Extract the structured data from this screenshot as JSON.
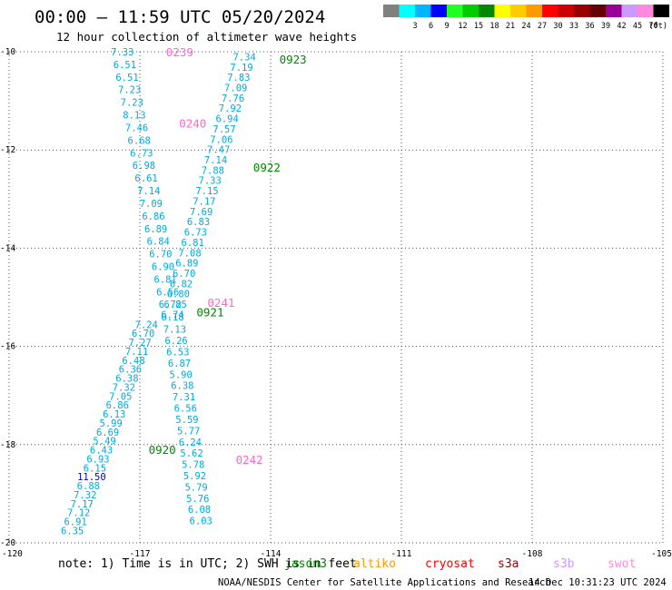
{
  "header": {
    "title": "00:00 — 11:59 UTC 05/20/2024",
    "subtitle": "12 hour collection of altimeter wave heights"
  },
  "legend_scale": {
    "unit": "(ft)",
    "bins": [
      {
        "label": "",
        "color": "#808080"
      },
      {
        "label": "3",
        "color": "#00ffff"
      },
      {
        "label": "6",
        "color": "#00b4ff"
      },
      {
        "label": "9",
        "color": "#0000ff"
      },
      {
        "label": "12",
        "color": "#22ff22"
      },
      {
        "label": "15",
        "color": "#00cc00"
      },
      {
        "label": "18",
        "color": "#008800"
      },
      {
        "label": "21",
        "color": "#ffff00"
      },
      {
        "label": "24",
        "color": "#ffcc00"
      },
      {
        "label": "27",
        "color": "#ff9900"
      },
      {
        "label": "30",
        "color": "#ff0000"
      },
      {
        "label": "33",
        "color": "#cc0000"
      },
      {
        "label": "36",
        "color": "#990000"
      },
      {
        "label": "39",
        "color": "#660000"
      },
      {
        "label": "42",
        "color": "#990099"
      },
      {
        "label": "45",
        "color": "#cc99ff"
      },
      {
        "label": "70",
        "color": "#ff88dd"
      },
      {
        "label": "",
        "color": "#000000"
      }
    ]
  },
  "footer": {
    "note": "note: 1) Time is in UTC; 2) SWH is in feet",
    "credit": "NOAA/NESDIS Center for Satellite Applications and Research",
    "timestamp": "14 Dec 10:31:23 UTC 2024",
    "satellites": [
      {
        "name": "jason3",
        "color": "#008800"
      },
      {
        "name": "altiko",
        "color": "#ff9900"
      },
      {
        "name": "cryosat",
        "color": "#ff0000"
      },
      {
        "name": "s3a",
        "color": "#990000"
      },
      {
        "name": "s3b",
        "color": "#cc99ff"
      },
      {
        "name": "swot",
        "color": "#ff88dd"
      }
    ]
  },
  "colors": {
    "value_text": "#00aadd",
    "value_high": "#0000cc",
    "jason3": "#008800",
    "swot": "#ff66cc",
    "grid": "#555555"
  },
  "chart_data": {
    "type": "scatter",
    "xlim": [
      -120,
      -105
    ],
    "ylim": [
      -20,
      -10
    ],
    "x_ticks": [
      "-120",
      "-117",
      "-114",
      "-111",
      "-108",
      "-105"
    ],
    "y_ticks": [
      "-10",
      "-12",
      "-14",
      "-16",
      "-18",
      "-20"
    ],
    "grid": true,
    "pass_labels": [
      {
        "text": "0239",
        "lon": -116.4,
        "lat": -10.0,
        "sat": "swot"
      },
      {
        "text": "0240",
        "lon": -116.1,
        "lat": -11.45,
        "sat": "swot"
      },
      {
        "text": "0241",
        "lon": -115.45,
        "lat": -15.1,
        "sat": "swot"
      },
      {
        "text": "0242",
        "lon": -114.8,
        "lat": -18.3,
        "sat": "swot"
      },
      {
        "text": "0923",
        "lon": -113.8,
        "lat": -10.15,
        "sat": "jason3"
      },
      {
        "text": "0922",
        "lon": -114.4,
        "lat": -12.35,
        "sat": "jason3"
      },
      {
        "text": "0921",
        "lon": -115.7,
        "lat": -15.3,
        "sat": "jason3"
      },
      {
        "text": "0920",
        "lon": -116.8,
        "lat": -18.1,
        "sat": "jason3"
      }
    ],
    "tracks": [
      {
        "name": "0239",
        "values": [
          "7.33",
          "6.51",
          "6.51",
          "7.23",
          "7.23",
          "8.13",
          "7.46",
          "6.68",
          "6.73",
          "6.98",
          "6.61",
          "7.14",
          "7.09",
          "6.86",
          "6.89",
          "6.84",
          "6.70",
          "6.90",
          "6.81",
          "6.56",
          "6.72",
          "6.18"
        ],
        "lon_start": -117.4,
        "lon_end": -116.25,
        "lat_start": -10.0,
        "lat_end": -15.4
      },
      {
        "name": "0923",
        "values": [
          "7.34",
          "7.19",
          "7.83",
          "7.09",
          "7.76",
          "7.92",
          "6.94",
          "7.57",
          "7.06",
          "7.47",
          "7.14",
          "7.88",
          "7.33",
          "7.15",
          "7.17",
          "7.69",
          "6.83",
          "6.73",
          "6.81",
          "7.08",
          "6.89",
          "6.70",
          "6.82",
          "6.80",
          "6.85",
          "6.74"
        ],
        "lon_start": -114.6,
        "lon_end": -116.25,
        "lat_start": -10.1,
        "lat_end": -15.35
      },
      {
        "name": "0241",
        "values": [
          "7.13",
          "6.26",
          "6.53",
          "6.87",
          "5.90",
          "6.38",
          "7.31",
          "6.56",
          "5.59",
          "5.77",
          "6.24",
          "5.62",
          "5.78",
          "5.92",
          "5.79",
          "5.76",
          "6.08",
          "6.03"
        ],
        "lon_start": -116.2,
        "lon_end": -115.6,
        "lat_start": -15.65,
        "lat_end": -19.55
      },
      {
        "name": "0921",
        "values": [
          "7.24",
          "6.70",
          "7.27",
          "7.11",
          "6.48",
          "6.36",
          "6.38",
          "7.32",
          "7.05",
          "6.86",
          "6.13",
          "5.99",
          "6.69",
          "5.49",
          "6.43",
          "6.93",
          "6.15",
          "11.50",
          "6.88",
          "7.32",
          "7.17",
          "7.12",
          "6.91",
          "6.35"
        ],
        "lon_start": -116.85,
        "lon_end": -118.55,
        "lat_start": -15.55,
        "lat_end": -19.75
      }
    ]
  }
}
